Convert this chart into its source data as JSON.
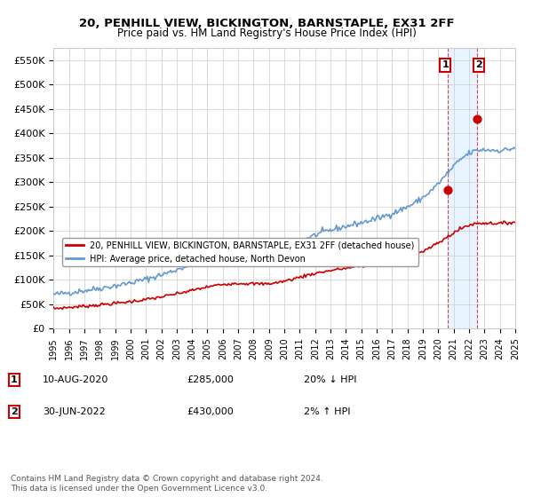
{
  "title": "20, PENHILL VIEW, BICKINGTON, BARNSTAPLE, EX31 2FF",
  "subtitle": "Price paid vs. HM Land Registry's House Price Index (HPI)",
  "hpi_color": "#6699cc",
  "price_color": "#cc0000",
  "highlight_color": "#cc0000",
  "bg_color": "#ffffff",
  "grid_color": "#cccccc",
  "highlight_region_color": "#ddeeff",
  "ylim": [
    0,
    575000
  ],
  "yticks": [
    0,
    50000,
    100000,
    150000,
    200000,
    250000,
    300000,
    350000,
    400000,
    450000,
    500000,
    550000
  ],
  "ytick_labels": [
    "£0",
    "£50K",
    "£100K",
    "£150K",
    "£200K",
    "£250K",
    "£300K",
    "£350K",
    "£400K",
    "£450K",
    "£500K",
    "£550K"
  ],
  "xlabel_start_year": 1995,
  "xlabel_end_year": 2025,
  "legend_label1": "20, PENHILL VIEW, BICKINGTON, BARNSTAPLE, EX31 2FF (detached house)",
  "legend_label2": "HPI: Average price, detached house, North Devon",
  "annotation1_label": "1",
  "annotation1_date": "10-AUG-2020",
  "annotation1_price": "£285,000",
  "annotation1_hpi": "20% ↓ HPI",
  "annotation2_label": "2",
  "annotation2_date": "30-JUN-2022",
  "annotation2_price": "£430,000",
  "annotation2_hpi": "2% ↑ HPI",
  "footer1": "Contains HM Land Registry data © Crown copyright and database right 2024.",
  "footer2": "This data is licensed under the Open Government Licence v3.0.",
  "sale1_year": 2020.61,
  "sale1_value": 285000,
  "sale2_year": 2022.5,
  "sale2_value": 430000
}
